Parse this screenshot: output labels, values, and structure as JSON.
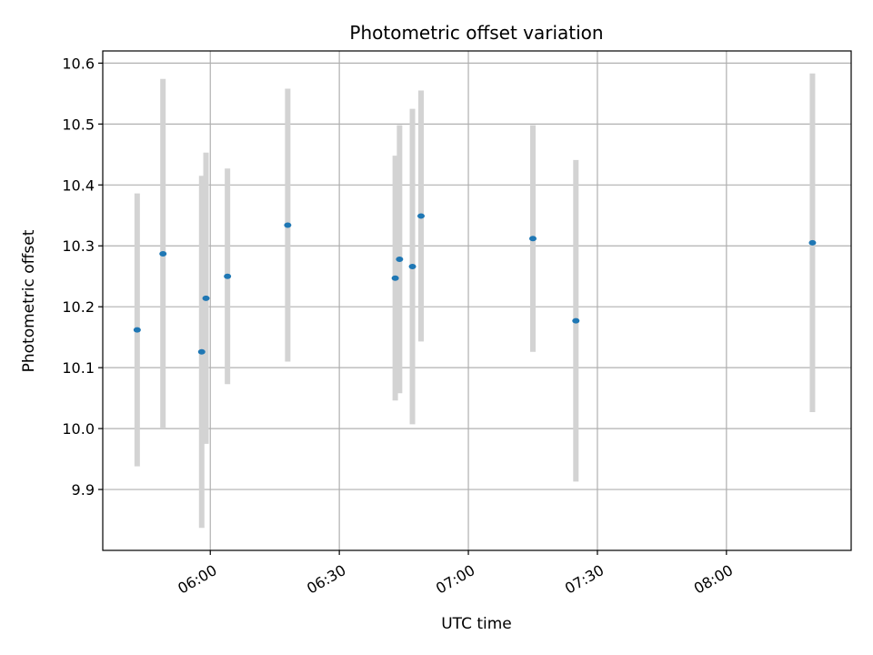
{
  "chart_data": {
    "type": "scatter",
    "title": "Photometric offset variation",
    "xlabel": "UTC time",
    "ylabel": "Photometric offset",
    "x_axis_kind": "time",
    "xlim": [
      "05:35",
      "08:29"
    ],
    "ylim": [
      9.8,
      10.62
    ],
    "x_ticks": [
      "06:00",
      "06:30",
      "07:00",
      "07:30",
      "08:00"
    ],
    "y_ticks": [
      9.9,
      10.0,
      10.1,
      10.2,
      10.3,
      10.4,
      10.5,
      10.6
    ],
    "grid": true,
    "point_color": "#1f77b4",
    "errorbar_color": "#d3d3d3",
    "points": [
      {
        "time": "05:43",
        "value": 10.162,
        "error": 0.224
      },
      {
        "time": "05:49",
        "value": 10.287,
        "error": 0.287
      },
      {
        "time": "05:58",
        "value": 10.126,
        "error": 0.289
      },
      {
        "time": "05:59",
        "value": 10.214,
        "error": 0.239
      },
      {
        "time": "06:04",
        "value": 10.25,
        "error": 0.177
      },
      {
        "time": "06:18",
        "value": 10.334,
        "error": 0.224
      },
      {
        "time": "06:43",
        "value": 10.247,
        "error": 0.201
      },
      {
        "time": "06:44",
        "value": 10.278,
        "error": 0.22
      },
      {
        "time": "06:47",
        "value": 10.266,
        "error": 0.259
      },
      {
        "time": "06:49",
        "value": 10.349,
        "error": 0.206
      },
      {
        "time": "07:15",
        "value": 10.312,
        "error": 0.186
      },
      {
        "time": "07:25",
        "value": 10.177,
        "error": 0.264
      },
      {
        "time": "08:20",
        "value": 10.305,
        "error": 0.278
      }
    ]
  }
}
